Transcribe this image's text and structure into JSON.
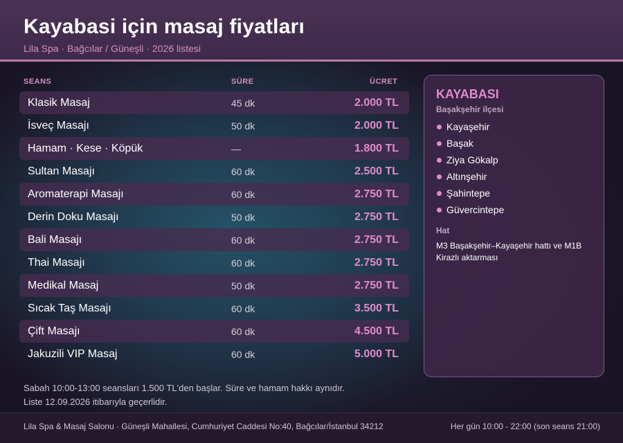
{
  "header": {
    "title": "Kayabasi için masaj fiyatları",
    "subtitle": "Lila Spa · Bağcılar / Güneşli · 2026 listesi"
  },
  "table": {
    "columns": {
      "session": "SEANS",
      "duration": "SÜRE",
      "price": "ÜCRET"
    },
    "rows": [
      {
        "name": "Klasik Masaj",
        "duration": "45 dk",
        "price": "2.000 TL"
      },
      {
        "name": "İsveç Masajı",
        "duration": "50 dk",
        "price": "2.000 TL"
      },
      {
        "name": "Hamam · Kese · Köpük",
        "duration": "—",
        "price": "1.800 TL"
      },
      {
        "name": "Sultan Masajı",
        "duration": "60 dk",
        "price": "2.500 TL"
      },
      {
        "name": "Aromaterapi Masajı",
        "duration": "60 dk",
        "price": "2.750 TL"
      },
      {
        "name": "Derin Doku Masajı",
        "duration": "50 dk",
        "price": "2.750 TL"
      },
      {
        "name": "Bali Masajı",
        "duration": "60 dk",
        "price": "2.750 TL"
      },
      {
        "name": "Thai Masajı",
        "duration": "60 dk",
        "price": "2.750 TL"
      },
      {
        "name": "Medikal Masaj",
        "duration": "50 dk",
        "price": "2.750 TL"
      },
      {
        "name": "Sıcak Taş Masajı",
        "duration": "60 dk",
        "price": "3.500 TL"
      },
      {
        "name": "Çift Masajı",
        "duration": "60 dk",
        "price": "4.500 TL"
      },
      {
        "name": "Jakuzili VIP Masaj",
        "duration": "60 dk",
        "price": "5.000 TL"
      }
    ]
  },
  "panel": {
    "title": "KAYABASI",
    "district": "Başakşehir ilçesi",
    "neighborhoods": [
      "Kayaşehir",
      "Başak",
      "Ziya Gökalp",
      "Altınşehir",
      "Şahintepe",
      "Güvercintepe"
    ],
    "line_label": "Hat",
    "line_text": "M3 Başakşehir–Kayaşehir hattı ve M1B Kirazlı aktarması"
  },
  "notes": [
    "Sabah 10:00-13:00 seansları 1.500 TL'den başlar. Süre ve hamam hakkı aynıdır.",
    "Liste 12.09.2026 itibarıyla geçerlidir."
  ],
  "footer": {
    "address": "Lila Spa & Masaj Salonu · Güneşli Mahallesi, Cumhuriyet Caddesi No:40, Bağcılar/İstanbul 34212",
    "hours": "Her gün 10:00 - 22:00 (son seans 21:00)"
  },
  "colors": {
    "accent": "#e08ccb",
    "header_bg": "#44304f",
    "header_rule": "#b87aa8",
    "row_shade": "#482c50"
  }
}
